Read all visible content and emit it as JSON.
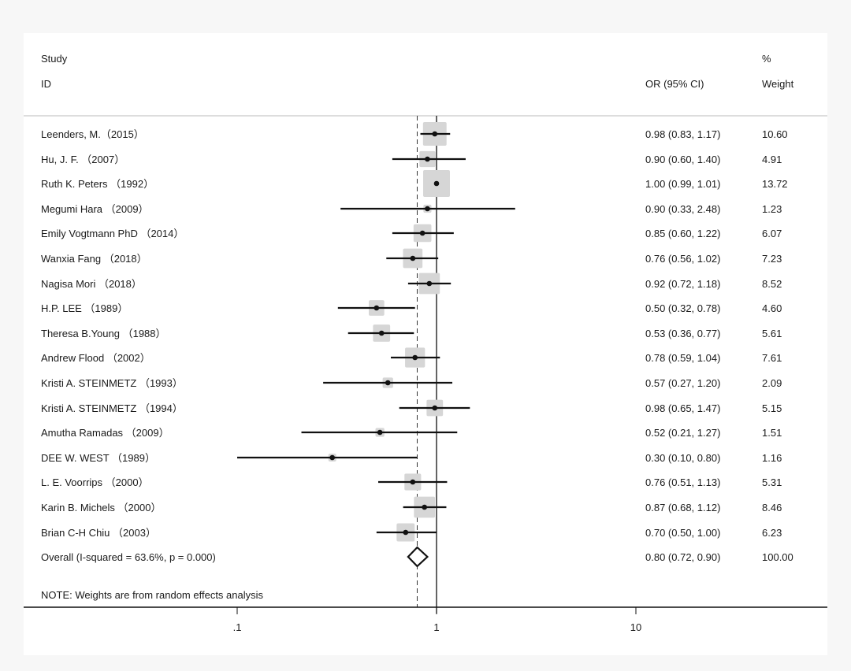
{
  "chart_data": {
    "type": "forest",
    "headers": {
      "study_line1": "Study",
      "study_line2": "ID",
      "or_ci": "OR (95% CI)",
      "weight_line1": "%",
      "weight_line2": "Weight"
    },
    "xscale": "log",
    "xticks": [
      0.1,
      1,
      10
    ],
    "xtick_labels": [
      ".1",
      "1",
      "10"
    ],
    "null_line": 1,
    "overall_line": 0.8,
    "studies": [
      {
        "label": "Leenders, M.（2015）",
        "or": 0.98,
        "lo": 0.83,
        "hi": 1.17,
        "ci_text": "0.98 (0.83, 1.17)",
        "weight": 10.6,
        "weight_text": "10.60"
      },
      {
        "label": "Hu, J. F. （2007）",
        "or": 0.9,
        "lo": 0.6,
        "hi": 1.4,
        "ci_text": "0.90 (0.60, 1.40)",
        "weight": 4.91,
        "weight_text": "4.91"
      },
      {
        "label": "Ruth K. Peters （1992）",
        "or": 1.0,
        "lo": 0.99,
        "hi": 1.01,
        "ci_text": "1.00 (0.99, 1.01)",
        "weight": 13.72,
        "weight_text": "13.72"
      },
      {
        "label": "Megumi Hara （2009）",
        "or": 0.9,
        "lo": 0.33,
        "hi": 2.48,
        "ci_text": "0.90 (0.33, 2.48)",
        "weight": 1.23,
        "weight_text": "1.23"
      },
      {
        "label": "Emily Vogtmann PhD （2014）",
        "or": 0.85,
        "lo": 0.6,
        "hi": 1.22,
        "ci_text": "0.85 (0.60, 1.22)",
        "weight": 6.07,
        "weight_text": "6.07"
      },
      {
        "label": "Wanxia Fang （2018）",
        "or": 0.76,
        "lo": 0.56,
        "hi": 1.02,
        "ci_text": "0.76 (0.56, 1.02)",
        "weight": 7.23,
        "weight_text": "7.23"
      },
      {
        "label": "Nagisa Mori （2018）",
        "or": 0.92,
        "lo": 0.72,
        "hi": 1.18,
        "ci_text": "0.92 (0.72, 1.18)",
        "weight": 8.52,
        "weight_text": "8.52"
      },
      {
        "label": "H.P. LEE （1989）",
        "or": 0.5,
        "lo": 0.32,
        "hi": 0.78,
        "ci_text": "0.50 (0.32, 0.78)",
        "weight": 4.6,
        "weight_text": "4.60"
      },
      {
        "label": "Theresa B.Young （1988）",
        "or": 0.53,
        "lo": 0.36,
        "hi": 0.77,
        "ci_text": "0.53 (0.36, 0.77)",
        "weight": 5.61,
        "weight_text": "5.61"
      },
      {
        "label": "Andrew Flood （2002）",
        "or": 0.78,
        "lo": 0.59,
        "hi": 1.04,
        "ci_text": "0.78 (0.59, 1.04)",
        "weight": 7.61,
        "weight_text": "7.61"
      },
      {
        "label": "Kristi A. STEINMETZ （1993）",
        "or": 0.57,
        "lo": 0.27,
        "hi": 1.2,
        "ci_text": "0.57 (0.27, 1.20)",
        "weight": 2.09,
        "weight_text": "2.09"
      },
      {
        "label": "Kristi A. STEINMETZ （1994）",
        "or": 0.98,
        "lo": 0.65,
        "hi": 1.47,
        "ci_text": "0.98 (0.65, 1.47)",
        "weight": 5.15,
        "weight_text": "5.15"
      },
      {
        "label": "Amutha Ramadas （2009）",
        "or": 0.52,
        "lo": 0.21,
        "hi": 1.27,
        "ci_text": "0.52 (0.21, 1.27)",
        "weight": 1.51,
        "weight_text": "1.51"
      },
      {
        "label": "DEE W. WEST （1989）",
        "or": 0.3,
        "lo": 0.1,
        "hi": 0.8,
        "ci_text": "0.30 (0.10, 0.80)",
        "weight": 1.16,
        "weight_text": "1.16"
      },
      {
        "label": "L. E. Voorrips （2000）",
        "or": 0.76,
        "lo": 0.51,
        "hi": 1.13,
        "ci_text": "0.76 (0.51, 1.13)",
        "weight": 5.31,
        "weight_text": "5.31"
      },
      {
        "label": "Karin B. Michels （2000）",
        "or": 0.87,
        "lo": 0.68,
        "hi": 1.12,
        "ci_text": "0.87 (0.68, 1.12)",
        "weight": 8.46,
        "weight_text": "8.46"
      },
      {
        "label": "Brian C-H Chiu （2003）",
        "or": 0.7,
        "lo": 0.5,
        "hi": 1.0,
        "ci_text": "0.70 (0.50, 1.00)",
        "weight": 6.23,
        "weight_text": "6.23"
      }
    ],
    "overall": {
      "label": "Overall  (I-squared = 63.6%, p = 0.000)",
      "or": 0.8,
      "lo": 0.72,
      "hi": 0.9,
      "ci_text": "0.80 (0.72, 0.90)",
      "weight_text": "100.00"
    },
    "note": "NOTE: Weights are from random effects analysis",
    "colors": {
      "box": "#d6d6d6",
      "line": "#111111",
      "rule": "#bbbbbb"
    }
  }
}
